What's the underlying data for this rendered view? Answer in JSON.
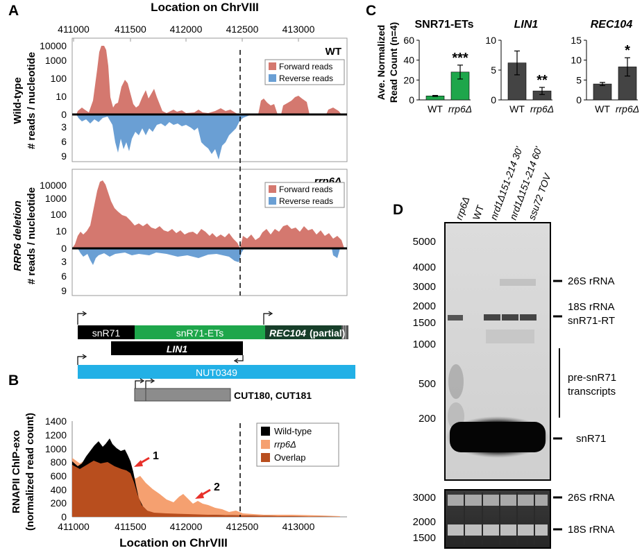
{
  "panel_labels": {
    "a": "A",
    "b": "B",
    "c": "C",
    "d": "D"
  },
  "panel_a": {
    "axis_title": "Location on ChrVIII",
    "x_ticks": [
      "411000",
      "411500",
      "412000",
      "412500",
      "413000"
    ],
    "wt": {
      "label": "WT",
      "ylabel_1": "Wild-type",
      "ylabel_2": "# reads / nucleotide",
      "y_ticks_top": [
        "10000",
        "1000",
        "100",
        "10",
        "0"
      ],
      "y_ticks_bottom": [
        "3",
        "6",
        "9"
      ],
      "legend_forward": "Forward reads",
      "legend_reverse": "Reverse reads"
    },
    "rrp6": {
      "label": "rrp6Δ",
      "ylabel_1": "RRP6 deletion",
      "ylabel_2": "# reads / nucleotide",
      "y_ticks_top": [
        "10000",
        "1000",
        "100",
        "10",
        "0"
      ],
      "y_ticks_bottom": [
        "3",
        "6",
        "9"
      ],
      "legend_forward": "Forward reads",
      "legend_reverse": "Reverse reads"
    },
    "colors": {
      "forward": "#d4786f",
      "reverse": "#6a9fd4"
    }
  },
  "annotation": {
    "snR71": "snR71",
    "snR71_ets": "snR71-ETs",
    "rec104": "REC104",
    "partial": "(partial)",
    "lin1": "LIN1",
    "nut": "NUT0349",
    "cut": "CUT180, CUT181",
    "colors": {
      "snR71": "#000000",
      "ets": "#1ea64b",
      "rec104": "#173f2a",
      "lin1": "#000000",
      "nut": "#22b0e6",
      "cut": "#8c8c8c"
    }
  },
  "panel_b": {
    "ylabel_1": "RNAPII ChIP-exo",
    "ylabel_2": "(normalized read count)",
    "xlabel": "Location on ChrVIII",
    "y_ticks": [
      "0",
      "200",
      "400",
      "600",
      "800",
      "1000",
      "1200",
      "1400"
    ],
    "x_ticks": [
      "411000",
      "411500",
      "412000",
      "412500",
      "413000"
    ],
    "legend": [
      "Wild-type",
      "rrp6Δ",
      "Overlap"
    ],
    "arrow_1": "1",
    "arrow_2": "2",
    "colors": {
      "wt": "#000000",
      "rrp6": "#f5a070",
      "overlap": "#b84e1e",
      "arrow": "#e8302a"
    }
  },
  "panel_c": {
    "ylabel_1": "Ave. Normalized",
    "ylabel_2": "Read Count (n=4)",
    "charts": [
      {
        "title": "SNR71-ETs",
        "italic": false,
        "y_ticks": [
          "0",
          "20",
          "40",
          "60"
        ],
        "categories": [
          "WT",
          "rrp6Δ"
        ],
        "values": [
          4,
          28
        ],
        "errors": [
          0.5,
          7
        ],
        "sig": "***",
        "color": "#1ea64b"
      },
      {
        "title": "LIN1",
        "italic": true,
        "y_ticks": [
          "0",
          "5",
          "10"
        ],
        "categories": [
          "WT",
          "rrp6Δ"
        ],
        "values": [
          6.2,
          1.5
        ],
        "errors": [
          2.0,
          0.6
        ],
        "sig": "**",
        "color": "#444444"
      },
      {
        "title": "REC104",
        "italic": true,
        "y_ticks": [
          "0",
          "5",
          "10",
          "15"
        ],
        "categories": [
          "WT",
          "rrp6Δ"
        ],
        "values": [
          4,
          8.3
        ],
        "errors": [
          0.4,
          2.3
        ],
        "sig": "*",
        "color": "#444444"
      }
    ]
  },
  "panel_d": {
    "lanes": [
      "rrp6Δ",
      "WT",
      "nrd1Δ151-214 30'",
      "nrd1Δ151-214 60'",
      "ssu72 TOV"
    ],
    "size_markers": [
      "5000",
      "4000",
      "3000",
      "2000",
      "1500",
      "1000",
      "500",
      "200"
    ],
    "bands": [
      "26S rRNA",
      "18S rRNA",
      "snR71-RT",
      "pre-snR71",
      "transcripts",
      "snR71"
    ],
    "gel2_markers": [
      "3000",
      "2000",
      "1500"
    ],
    "gel2_bands": [
      "26S rRNA",
      "18S rRNA"
    ]
  }
}
